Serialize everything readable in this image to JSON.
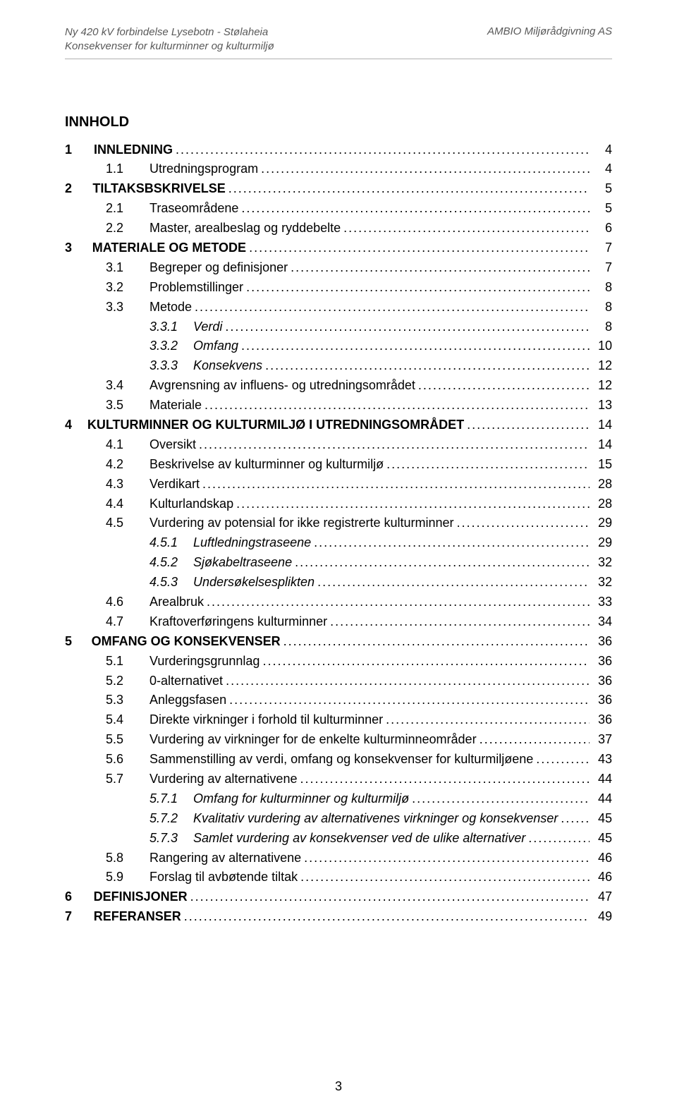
{
  "header": {
    "left_line1": "Ny 420 kV forbindelse Lysebotn - Stølaheia",
    "left_line2": "Konsekvenser for kulturminner og kulturmiljø",
    "right": "AMBIO Miljørådgivning AS"
  },
  "title": "INNHOLD",
  "page_number": "3",
  "styles": {
    "header_color": "#595959",
    "header_border": "#b0b0b0",
    "text_color": "#000000",
    "background": "#ffffff",
    "body_fontsize": 18,
    "header_fontsize": 15,
    "title_fontsize": 20
  },
  "toc": [
    {
      "level": 0,
      "num": "1",
      "label": "INNLEDNING",
      "page": "4",
      "bold": true
    },
    {
      "level": 1,
      "num": "1.1",
      "label": "Utredningsprogram",
      "page": "4"
    },
    {
      "level": 0,
      "num": "2",
      "label": "TILTAKSBSKRIVELSE",
      "page": "5",
      "bold": true
    },
    {
      "level": 1,
      "num": "2.1",
      "label": "Traseområdene",
      "page": "5"
    },
    {
      "level": 1,
      "num": "2.2",
      "label": "Master, arealbeslag og ryddebelte",
      "page": "6"
    },
    {
      "level": 0,
      "num": "3",
      "label": "MATERIALE OG METODE",
      "page": "7",
      "bold": true
    },
    {
      "level": 1,
      "num": "3.1",
      "label": "Begreper og definisjoner",
      "page": "7"
    },
    {
      "level": 1,
      "num": "3.2",
      "label": "Problemstillinger",
      "page": "8"
    },
    {
      "level": 1,
      "num": "3.3",
      "label": "Metode",
      "page": "8"
    },
    {
      "level": 2,
      "num": "3.3.1",
      "label": "Verdi",
      "page": "8",
      "italic": true
    },
    {
      "level": 2,
      "num": "3.3.2",
      "label": "Omfang",
      "page": "10",
      "italic": true
    },
    {
      "level": 2,
      "num": "3.3.3",
      "label": "Konsekvens",
      "page": "12",
      "italic": true
    },
    {
      "level": 1,
      "num": "3.4",
      "label": "Avgrensning av influens- og utredningsområdet",
      "page": "12"
    },
    {
      "level": 1,
      "num": "3.5",
      "label": "Materiale",
      "page": "13"
    },
    {
      "level": 0,
      "num": "4",
      "label": "KULTURMINNER OG KULTURMILJØ I UTREDNINGSOMRÅDET",
      "page": "14",
      "bold": true
    },
    {
      "level": 1,
      "num": "4.1",
      "label": "Oversikt",
      "page": "14"
    },
    {
      "level": 1,
      "num": "4.2",
      "label": "Beskrivelse av kulturminner og kulturmiljø",
      "page": "15"
    },
    {
      "level": 1,
      "num": "4.3",
      "label": "Verdikart",
      "page": "28"
    },
    {
      "level": 1,
      "num": "4.4",
      "label": "Kulturlandskap",
      "page": "28"
    },
    {
      "level": 1,
      "num": "4.5",
      "label": "Vurdering av potensial for ikke registrerte kulturminner",
      "page": "29"
    },
    {
      "level": 2,
      "num": "4.5.1",
      "label": "Luftledningstraseene",
      "page": "29",
      "italic": true
    },
    {
      "level": 2,
      "num": "4.5.2",
      "label": "Sjøkabeltraseene",
      "page": "32",
      "italic": true
    },
    {
      "level": 2,
      "num": "4.5.3",
      "label": "Undersøkelsesplikten",
      "page": "32",
      "italic": true
    },
    {
      "level": 1,
      "num": "4.6",
      "label": "Arealbruk",
      "page": "33"
    },
    {
      "level": 1,
      "num": "4.7",
      "label": "Kraftoverføringens kulturminner",
      "page": "34"
    },
    {
      "level": 0,
      "num": "5",
      "label": "OMFANG OG KONSEKVENSER",
      "page": "36",
      "bold": true
    },
    {
      "level": 1,
      "num": "5.1",
      "label": "Vurderingsgrunnlag",
      "page": "36"
    },
    {
      "level": 1,
      "num": "5.2",
      "label": "0-alternativet",
      "page": "36"
    },
    {
      "level": 1,
      "num": "5.3",
      "label": "Anleggsfasen",
      "page": "36"
    },
    {
      "level": 1,
      "num": "5.4",
      "label": "Direkte virkninger i forhold til kulturminner",
      "page": "36"
    },
    {
      "level": 1,
      "num": "5.5",
      "label": "Vurdering av virkninger for de enkelte kulturminneområder",
      "page": "37"
    },
    {
      "level": 1,
      "num": "5.6",
      "label": "Sammenstilling av verdi, omfang og konsekvenser for kulturmiljøene",
      "page": "43"
    },
    {
      "level": 1,
      "num": "5.7",
      "label": "Vurdering av alternativene",
      "page": "44"
    },
    {
      "level": 2,
      "num": "5.7.1",
      "label": "Omfang for kulturminner og kulturmiljø",
      "page": "44",
      "italic": true
    },
    {
      "level": 2,
      "num": "5.7.2",
      "label": "Kvalitativ vurdering av alternativenes virkninger og konsekvenser",
      "page": "45",
      "italic": true
    },
    {
      "level": 2,
      "num": "5.7.3",
      "label": "Samlet vurdering av konsekvenser ved de ulike alternativer",
      "page": "45",
      "italic": true
    },
    {
      "level": 1,
      "num": "5.8",
      "label": "Rangering av alternativene",
      "page": "46"
    },
    {
      "level": 1,
      "num": "5.9",
      "label": "Forslag til avbøtende tiltak",
      "page": "46"
    },
    {
      "level": 0,
      "num": "6",
      "label": "DEFINISJONER",
      "page": "47",
      "bold": true
    },
    {
      "level": 0,
      "num": "7",
      "label": "REFERANSER",
      "page": "49",
      "bold": true
    }
  ]
}
